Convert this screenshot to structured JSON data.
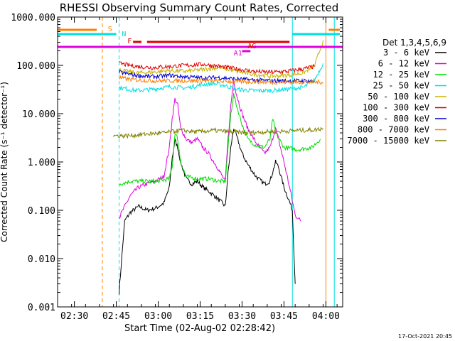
{
  "chart_data": {
    "type": "line",
    "title": "RHESSI Observing Summary Count Rates, Corrected",
    "xlabel": "Start Time (02-Aug-02 02:28:42)",
    "ylabel": "Corrected Count Rate (s⁻¹ detector⁻¹)",
    "y_scale": "log",
    "ylim": [
      0.001,
      1000
    ],
    "xlim": [
      "02:24",
      "04:06"
    ],
    "x_ticks": [
      "02:30",
      "02:45",
      "03:00",
      "03:15",
      "03:30",
      "03:45",
      "04:00"
    ],
    "y_ticks": [
      "0.001",
      "0.010",
      "0.100",
      "1.000",
      "10.000",
      "100.000",
      "1000.000"
    ],
    "legend_title": "Det 1,3,4,5,6,9",
    "legend_position": "right",
    "timestamp": "17-Oct-2021 20:45",
    "flags": [
      {
        "label": "S",
        "color": "#ff8000"
      },
      {
        "label": "N",
        "color": "#00e0e0"
      },
      {
        "label": "F",
        "color": "#e00000"
      },
      {
        "label": "AG",
        "color": "#e00000"
      },
      {
        "label": "A1",
        "color": "#e000e0"
      }
    ],
    "series": [
      {
        "name": "3 - 6 keV",
        "color": "#000000",
        "points": [
          [
            "02:46",
            0.002
          ],
          [
            "02:48",
            0.06
          ],
          [
            "02:50",
            0.09
          ],
          [
            "02:53",
            0.12
          ],
          [
            "02:56",
            0.1
          ],
          [
            "02:59",
            0.11
          ],
          [
            "03:02",
            0.14
          ],
          [
            "03:04",
            0.3
          ],
          [
            "03:05",
            1.2
          ],
          [
            "03:06",
            2.8
          ],
          [
            "03:07",
            2.0
          ],
          [
            "03:08",
            1.0
          ],
          [
            "03:10",
            0.45
          ],
          [
            "03:12",
            0.35
          ],
          [
            "03:14",
            0.4
          ],
          [
            "03:16",
            0.3
          ],
          [
            "03:18",
            0.25
          ],
          [
            "03:21",
            0.18
          ],
          [
            "03:23",
            0.14
          ],
          [
            "03:24",
            0.12
          ],
          [
            "03:25",
            0.6
          ],
          [
            "03:26",
            2.0
          ],
          [
            "03:27",
            5.0
          ],
          [
            "03:28",
            3.5
          ],
          [
            "03:30",
            1.5
          ],
          [
            "03:32",
            0.9
          ],
          [
            "03:35",
            0.5
          ],
          [
            "03:38",
            0.35
          ],
          [
            "03:40",
            0.4
          ],
          [
            "03:42",
            1.0
          ],
          [
            "03:43",
            0.8
          ],
          [
            "03:45",
            0.3
          ],
          [
            "03:47",
            0.15
          ],
          [
            "03:48",
            0.1
          ],
          [
            "03:49",
            0.003
          ]
        ]
      },
      {
        "name": "6 - 12 keV",
        "color": "#e000e0",
        "points": [
          [
            "02:46",
            0.07
          ],
          [
            "02:48",
            0.12
          ],
          [
            "02:50",
            0.2
          ],
          [
            "02:53",
            0.3
          ],
          [
            "02:56",
            0.35
          ],
          [
            "02:59",
            0.4
          ],
          [
            "03:02",
            0.5
          ],
          [
            "03:04",
            2.0
          ],
          [
            "03:05",
            8.0
          ],
          [
            "03:06",
            20.0
          ],
          [
            "03:07",
            15.0
          ],
          [
            "03:08",
            5.0
          ],
          [
            "03:10",
            3.0
          ],
          [
            "03:12",
            2.5
          ],
          [
            "03:14",
            3.0
          ],
          [
            "03:16",
            2.0
          ],
          [
            "03:18",
            1.5
          ],
          [
            "03:21",
            0.8
          ],
          [
            "03:23",
            0.5
          ],
          [
            "03:24",
            0.4
          ],
          [
            "03:25",
            3.0
          ],
          [
            "03:26",
            15.0
          ],
          [
            "03:27",
            50.0
          ],
          [
            "03:28",
            25.0
          ],
          [
            "03:30",
            10.0
          ],
          [
            "03:32",
            5.0
          ],
          [
            "03:35",
            2.5
          ],
          [
            "03:38",
            1.5
          ],
          [
            "03:40",
            2.0
          ],
          [
            "03:42",
            5.0
          ],
          [
            "03:43",
            3.0
          ],
          [
            "03:45",
            1.0
          ],
          [
            "03:47",
            0.3
          ],
          [
            "03:49",
            0.08
          ],
          [
            "03:51",
            0.06
          ]
        ]
      },
      {
        "name": "12 - 25 keV",
        "color": "#00dd00",
        "points": [
          [
            "02:46",
            0.35
          ],
          [
            "02:50",
            0.4
          ],
          [
            "02:55",
            0.4
          ],
          [
            "03:00",
            0.4
          ],
          [
            "03:04",
            0.45
          ],
          [
            "03:05",
            0.8
          ],
          [
            "03:06",
            4.0
          ],
          [
            "03:07",
            3.0
          ],
          [
            "03:08",
            1.0
          ],
          [
            "03:10",
            0.5
          ],
          [
            "03:14",
            0.45
          ],
          [
            "03:18",
            0.45
          ],
          [
            "03:22",
            0.4
          ],
          [
            "03:24",
            0.4
          ],
          [
            "03:25",
            2.0
          ],
          [
            "03:26",
            10.0
          ],
          [
            "03:27",
            25.0
          ],
          [
            "03:28",
            15.0
          ],
          [
            "03:30",
            6.0
          ],
          [
            "03:32",
            3.0
          ],
          [
            "03:35",
            2.2
          ],
          [
            "03:38",
            2.0
          ],
          [
            "03:40",
            3.0
          ],
          [
            "03:41",
            8.0
          ],
          [
            "03:42",
            4.0
          ],
          [
            "03:45",
            2.0
          ],
          [
            "03:50",
            1.8
          ],
          [
            "03:55",
            2.0
          ],
          [
            "03:58",
            3.0
          ]
        ]
      },
      {
        "name": "25 - 50 keV",
        "color": "#00e0e0",
        "points": [
          [
            "02:46",
            35
          ],
          [
            "02:52",
            30
          ],
          [
            "02:58",
            32
          ],
          [
            "03:04",
            36
          ],
          [
            "03:10",
            34
          ],
          [
            "03:16",
            40
          ],
          [
            "03:20",
            42
          ],
          [
            "03:24",
            38
          ],
          [
            "03:28",
            32
          ],
          [
            "03:34",
            30
          ],
          [
            "03:40",
            30
          ],
          [
            "03:46",
            32
          ],
          [
            "03:52",
            35
          ],
          [
            "03:56",
            50
          ],
          [
            "03:59",
            110
          ]
        ]
      },
      {
        "name": "50 - 100 keV",
        "color": "#c8b400",
        "points": [
          [
            "02:46",
            80
          ],
          [
            "02:52",
            70
          ],
          [
            "02:58",
            72
          ],
          [
            "03:04",
            78
          ],
          [
            "03:10",
            75
          ],
          [
            "03:16",
            82
          ],
          [
            "03:22",
            90
          ],
          [
            "03:28",
            75
          ],
          [
            "03:34",
            65
          ],
          [
            "03:40",
            60
          ],
          [
            "03:46",
            62
          ],
          [
            "03:52",
            70
          ],
          [
            "03:56",
            100
          ],
          [
            "03:59",
            330
          ]
        ]
      },
      {
        "name": "100 - 300 keV",
        "color": "#e00000",
        "points": [
          [
            "02:46",
            110
          ],
          [
            "02:52",
            95
          ],
          [
            "02:58",
            90
          ],
          [
            "03:04",
            95
          ],
          [
            "03:10",
            100
          ],
          [
            "03:16",
            105
          ],
          [
            "03:22",
            95
          ],
          [
            "03:28",
            85
          ],
          [
            "03:34",
            75
          ],
          [
            "03:40",
            72
          ],
          [
            "03:46",
            75
          ],
          [
            "03:52",
            85
          ],
          [
            "03:56",
            95
          ]
        ]
      },
      {
        "name": "300 - 800 keV",
        "color": "#0000cc",
        "points": [
          [
            "02:46",
            72
          ],
          [
            "02:52",
            62
          ],
          [
            "02:58",
            58
          ],
          [
            "03:04",
            62
          ],
          [
            "03:10",
            58
          ],
          [
            "03:16",
            55
          ],
          [
            "03:22",
            56
          ],
          [
            "03:28",
            52
          ],
          [
            "03:34",
            50
          ],
          [
            "03:40",
            48
          ],
          [
            "03:46",
            48
          ],
          [
            "03:52",
            48
          ],
          [
            "03:56",
            47
          ]
        ]
      },
      {
        "name": "800 - 7000 keV",
        "color": "#ff8000",
        "points": [
          [
            "02:46",
            55
          ],
          [
            "02:52",
            50
          ],
          [
            "02:58",
            48
          ],
          [
            "03:04",
            48
          ],
          [
            "03:10",
            48
          ],
          [
            "03:16",
            48
          ],
          [
            "03:22",
            47
          ],
          [
            "03:28",
            46
          ],
          [
            "03:34",
            46
          ],
          [
            "03:40",
            45
          ],
          [
            "03:46",
            45
          ],
          [
            "03:52",
            45
          ],
          [
            "03:56",
            45
          ],
          [
            "03:59",
            45
          ]
        ]
      },
      {
        "name": "7000 - 15000 keV",
        "color": "#808000",
        "points": [
          [
            "02:44",
            3.5
          ],
          [
            "02:50",
            3.5
          ],
          [
            "02:56",
            3.8
          ],
          [
            "03:02",
            4.0
          ],
          [
            "03:08",
            4.5
          ],
          [
            "03:14",
            4.2
          ],
          [
            "03:20",
            4.5
          ],
          [
            "03:26",
            4.2
          ],
          [
            "03:32",
            4.0
          ],
          [
            "03:38",
            4.2
          ],
          [
            "03:44",
            4.3
          ],
          [
            "03:50",
            4.5
          ],
          [
            "03:56",
            4.6
          ],
          [
            "03:59",
            5.0
          ]
        ]
      }
    ]
  }
}
